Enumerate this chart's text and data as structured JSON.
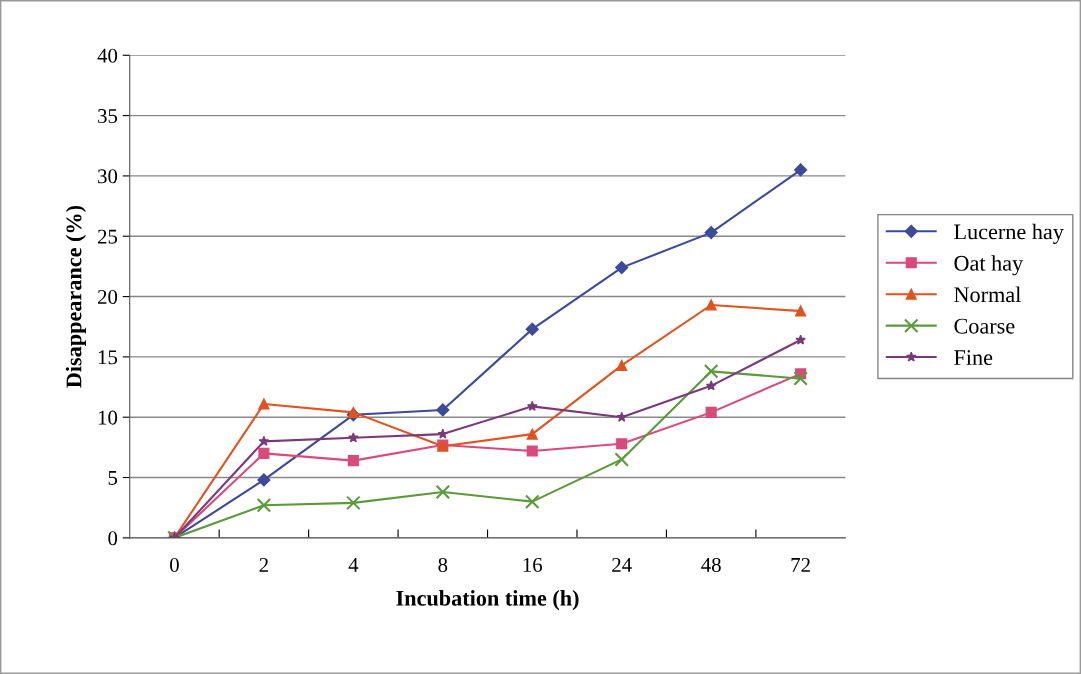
{
  "chart_data": {
    "type": "line",
    "xlabel": "Incubation time (h)",
    "ylabel": "Disappearance (%)",
    "categories": [
      "0",
      "2",
      "4",
      "8",
      "16",
      "24",
      "48",
      "72"
    ],
    "ylim": [
      0,
      40
    ],
    "yticks": [
      0,
      5,
      10,
      15,
      20,
      25,
      30,
      35,
      40
    ],
    "grid": "y",
    "legend": "right",
    "series": [
      {
        "name": "Lucerne hay",
        "color": "#3b4a9a",
        "marker": "diamond",
        "values": [
          0,
          4.8,
          10.2,
          10.6,
          17.3,
          22.4,
          25.3,
          30.5
        ]
      },
      {
        "name": "Oat hay",
        "color": "#d94a7a",
        "marker": "square",
        "values": [
          0,
          7.0,
          6.4,
          7.7,
          7.2,
          7.8,
          10.4,
          13.6
        ]
      },
      {
        "name": "Normal",
        "color": "#e0521e",
        "marker": "triangle",
        "values": [
          0,
          11.1,
          10.4,
          7.6,
          8.6,
          14.3,
          19.3,
          18.8
        ]
      },
      {
        "name": "Coarse",
        "color": "#5a9a3a",
        "marker": "cross",
        "values": [
          0,
          2.7,
          2.9,
          3.8,
          3.0,
          6.5,
          13.8,
          13.2
        ]
      },
      {
        "name": "Fine",
        "color": "#7a3a7a",
        "marker": "star",
        "values": [
          0,
          8.0,
          8.3,
          8.6,
          10.9,
          10.0,
          12.6,
          16.4
        ]
      }
    ]
  }
}
